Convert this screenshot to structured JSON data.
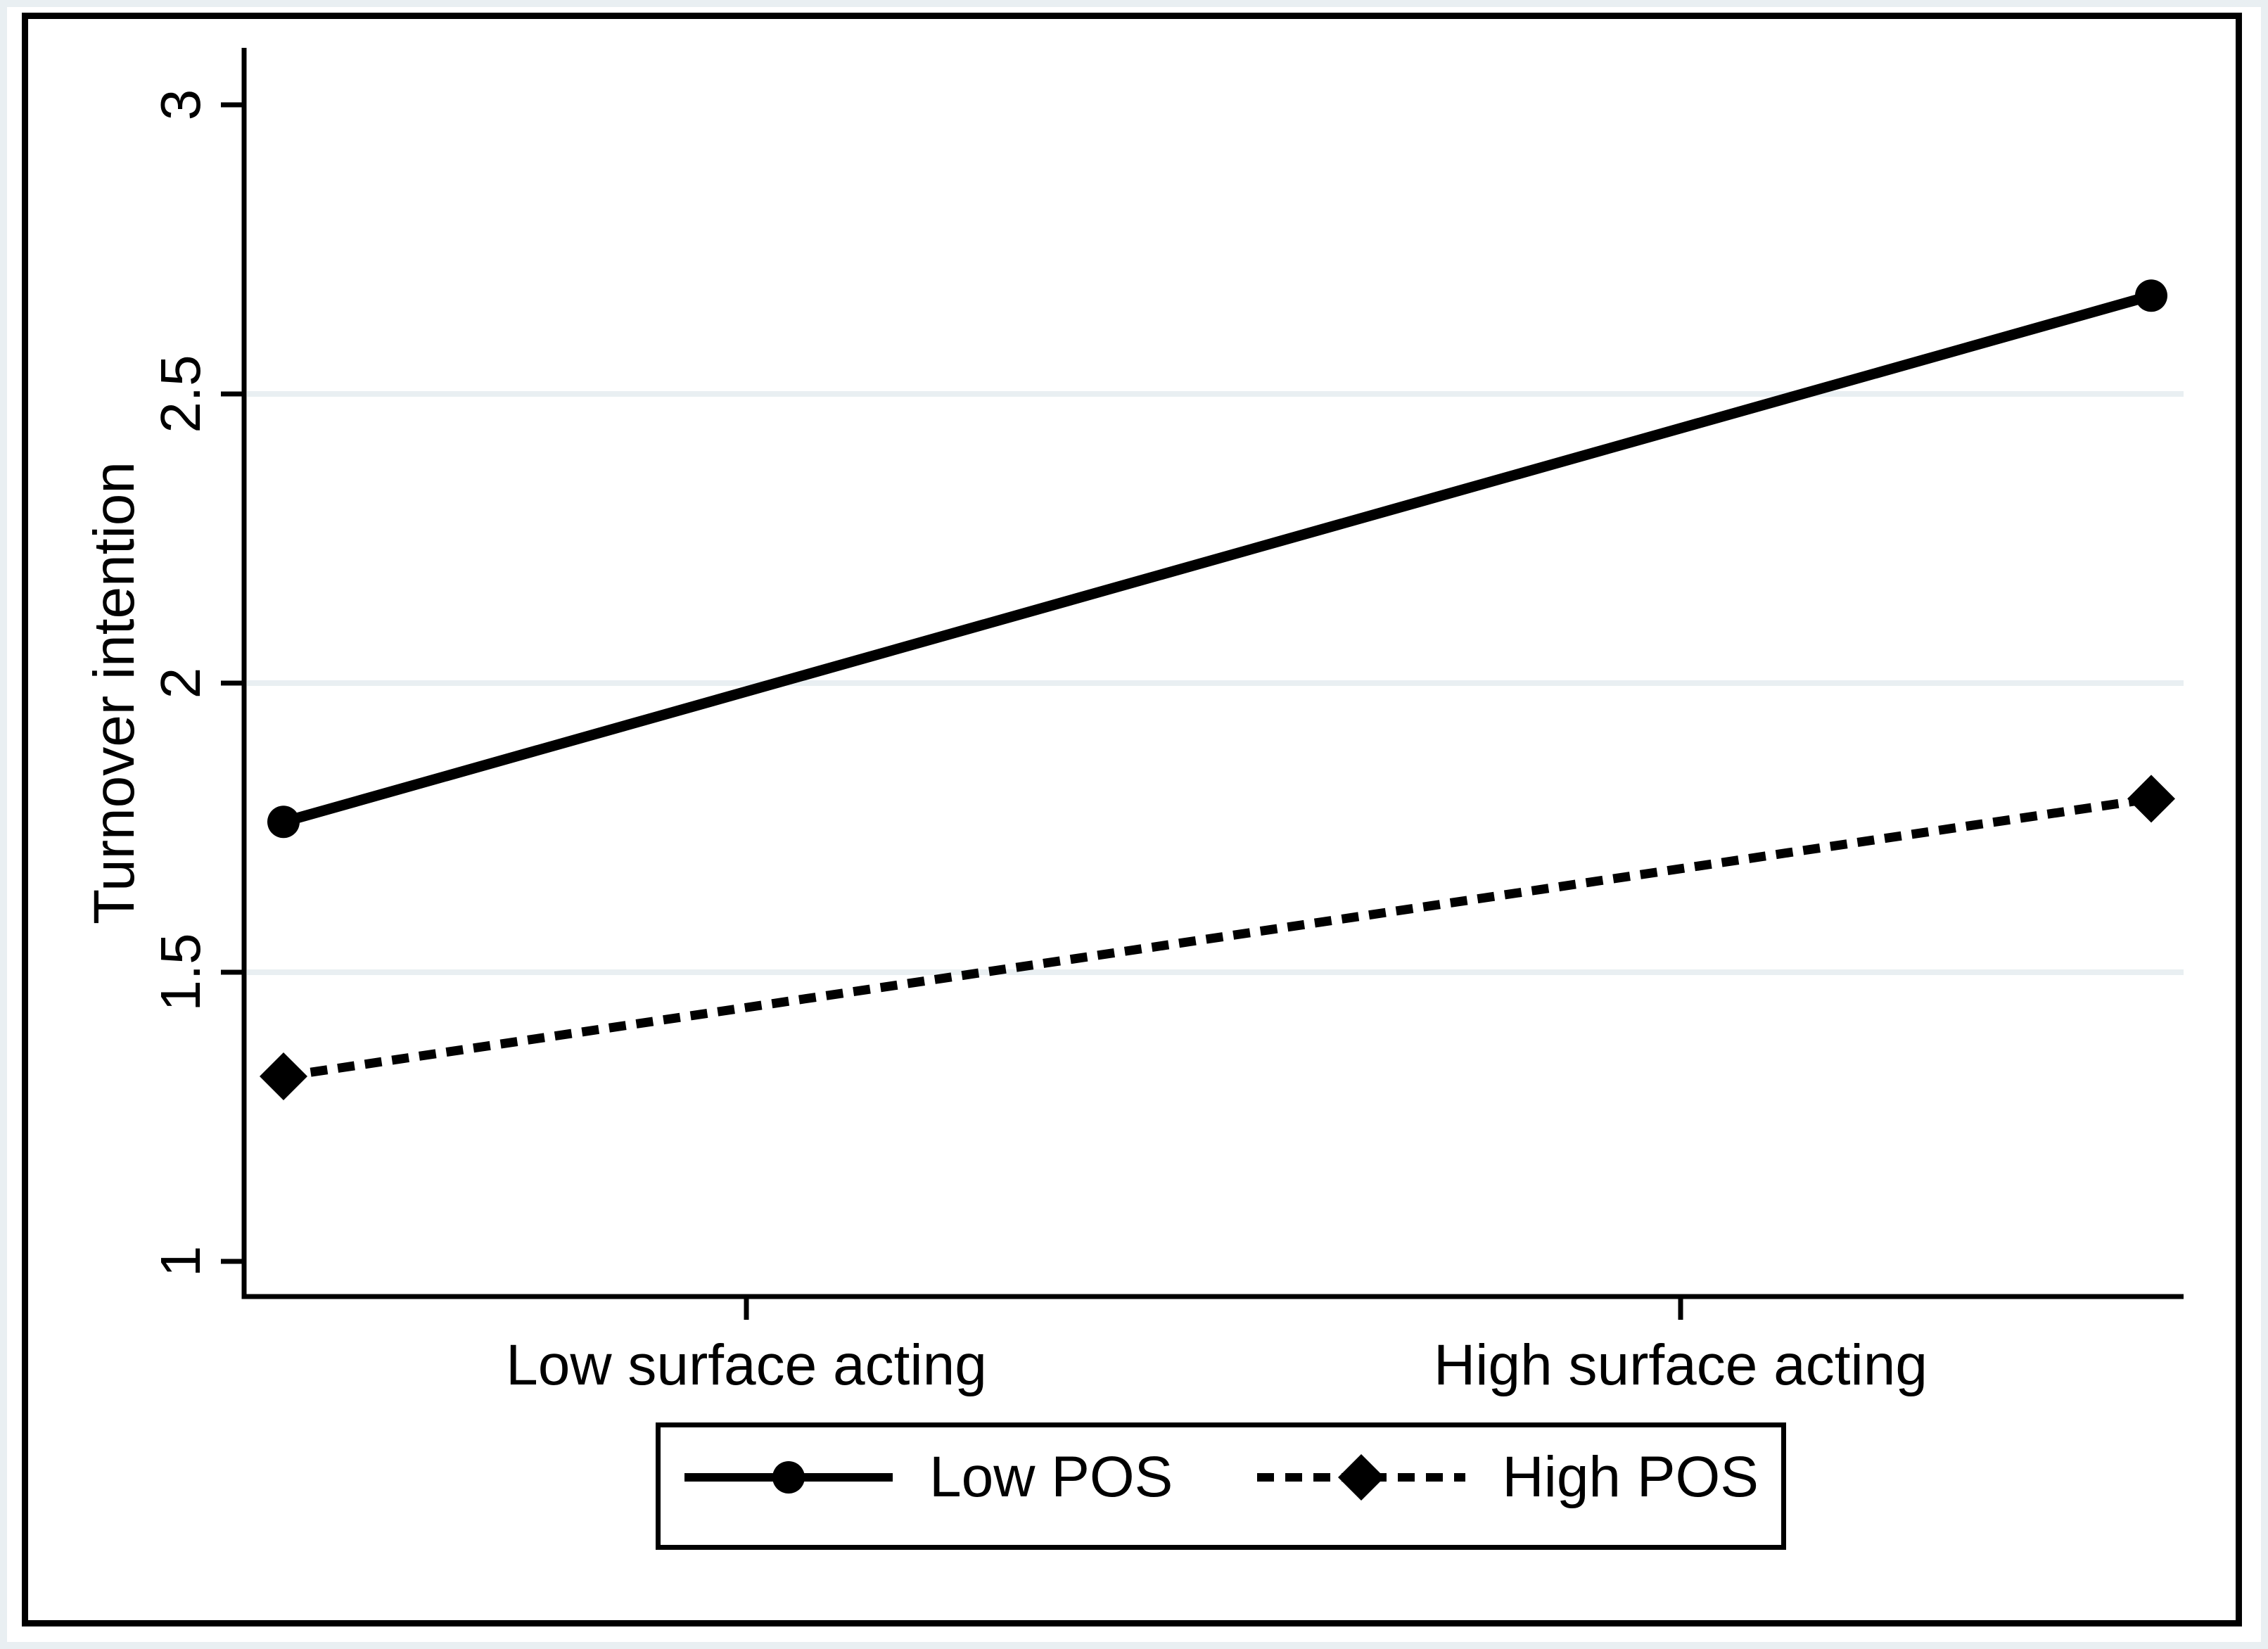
{
  "chart_data": {
    "type": "line",
    "title": "",
    "xlabel": "",
    "ylabel": "Turnover intention",
    "ylim": [
      1,
      3
    ],
    "yticks": [
      {
        "value": 3,
        "label": "3"
      },
      {
        "value": 2.5,
        "label": "2.5"
      },
      {
        "value": 2,
        "label": "2"
      },
      {
        "value": 1.5,
        "label": "1.5"
      },
      {
        "value": 1,
        "label": "1"
      }
    ],
    "gridlines_at": [
      2.5,
      2,
      1.5
    ],
    "grid": true,
    "categories": [
      "Low surface acting",
      "High surface acting"
    ],
    "series": [
      {
        "name": "Low POS",
        "values": [
          1.76,
          2.67
        ],
        "marker": "circle",
        "line_style": "solid"
      },
      {
        "name": "High POS",
        "values": [
          1.32,
          1.8
        ],
        "marker": "diamond",
        "line_style": "dashed"
      }
    ],
    "legend_position": "bottom",
    "colors": {
      "line": "#000000",
      "grid": "#e9eff2",
      "background": "#ffffff",
      "frame_edge": "#e9eff2"
    }
  }
}
